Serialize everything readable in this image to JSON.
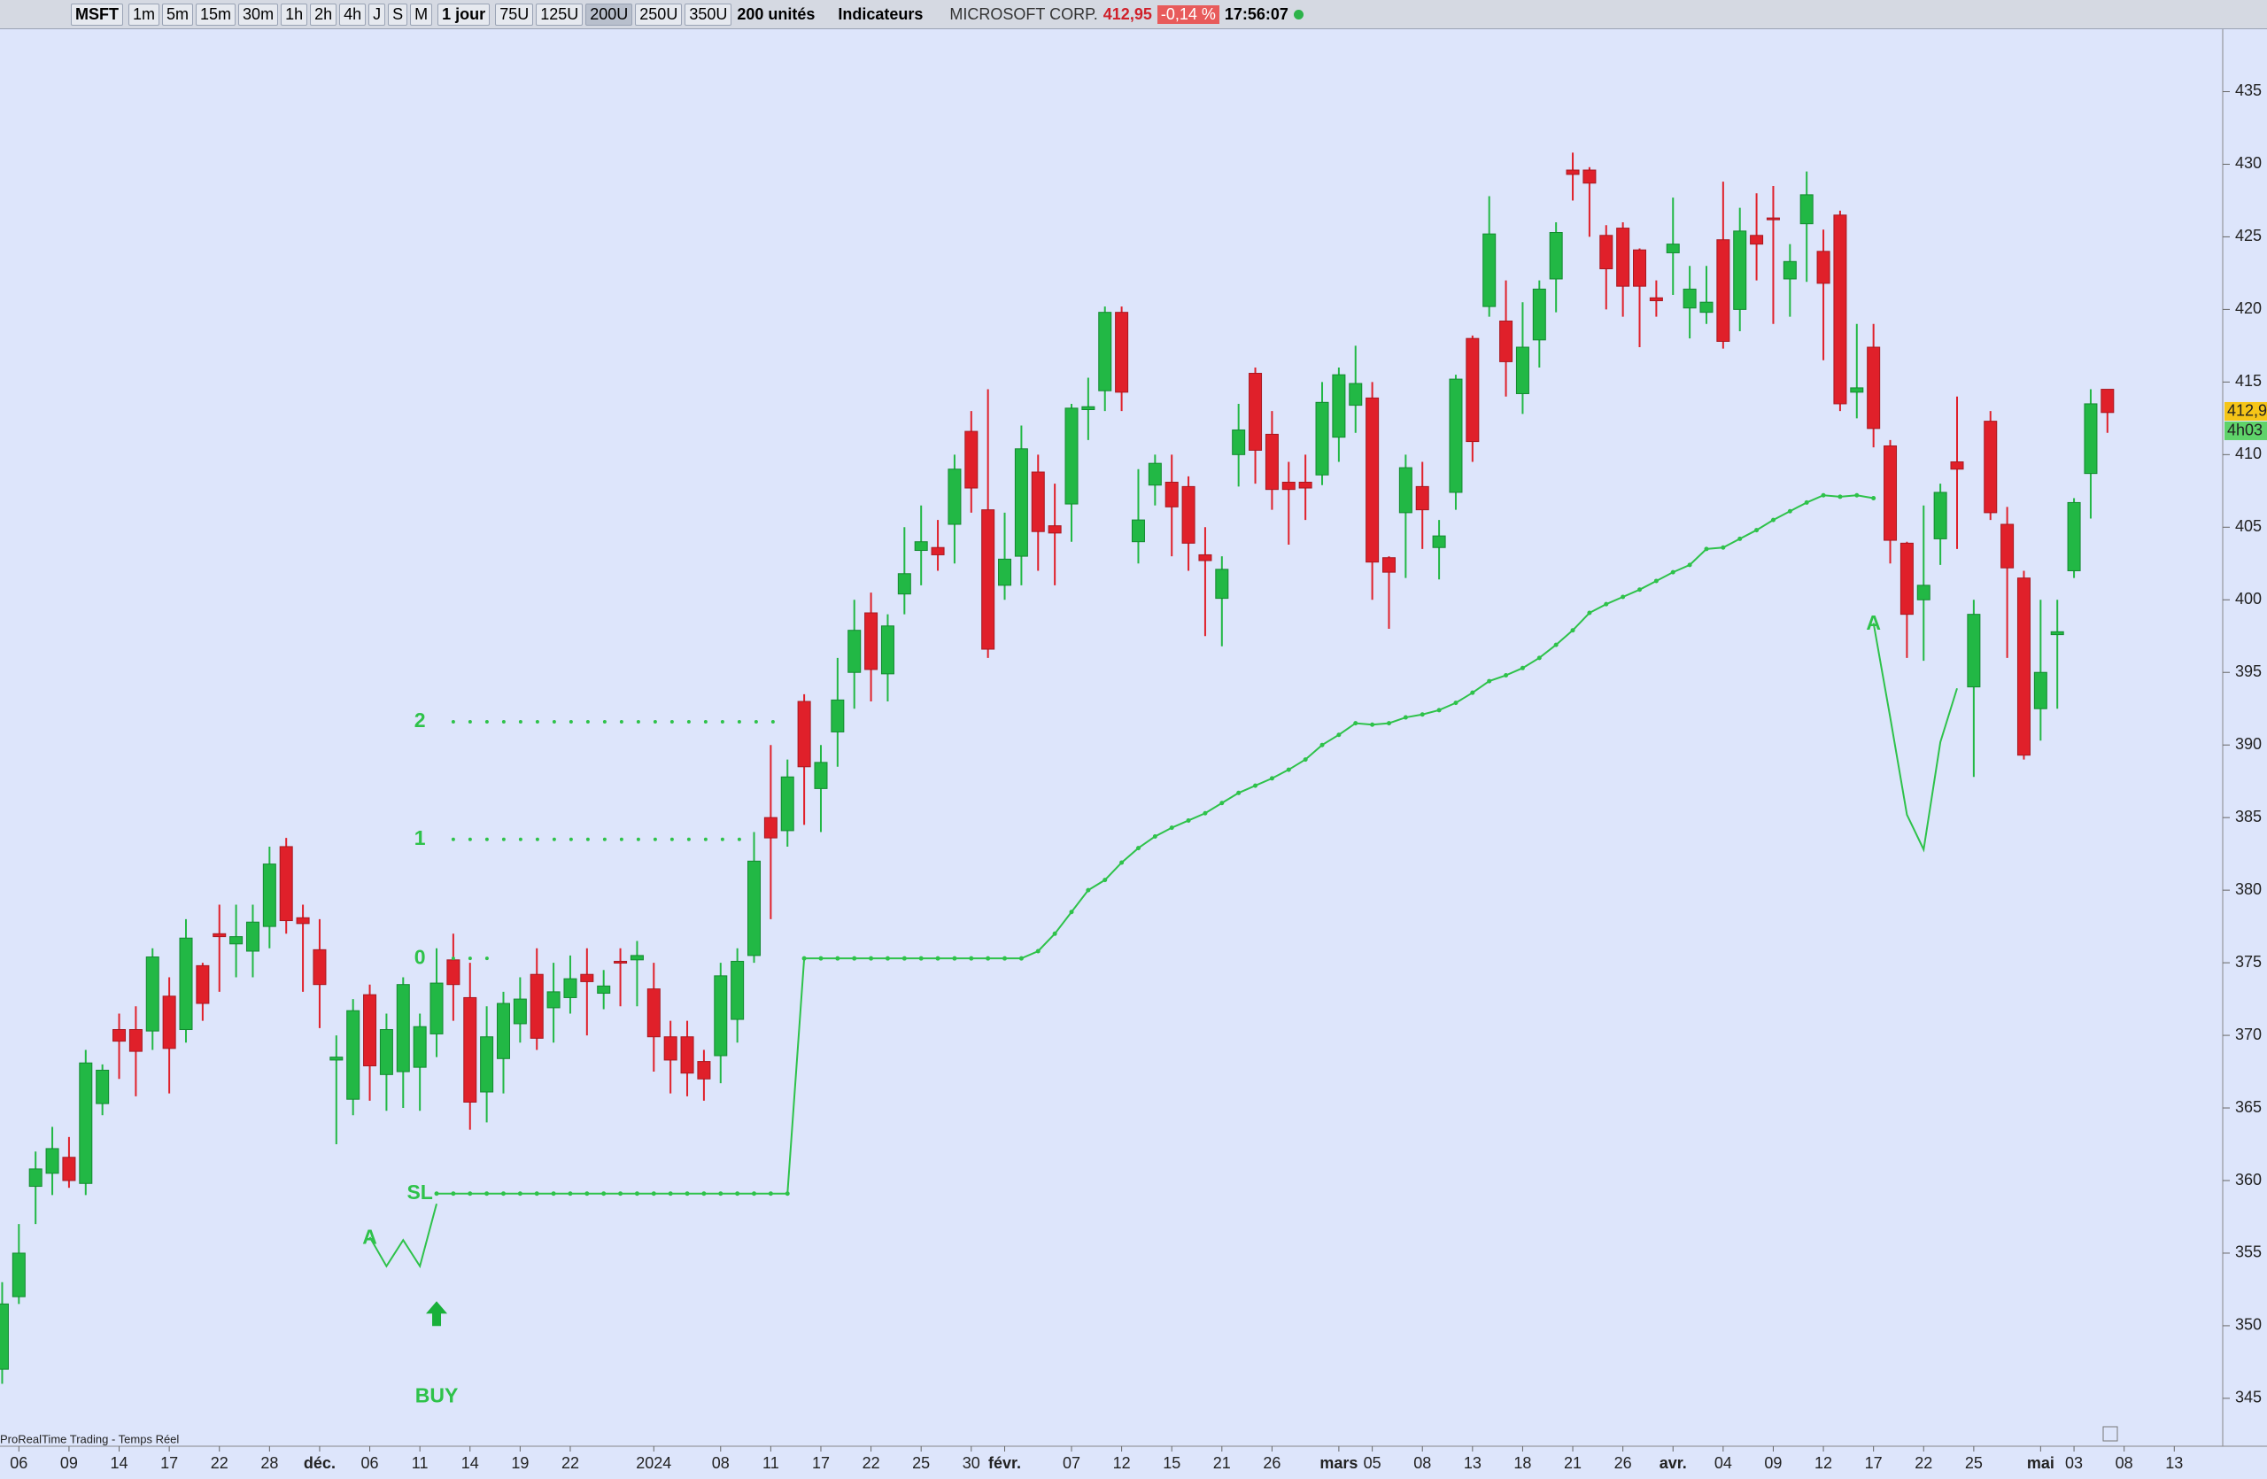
{
  "toolbar": {
    "symbol": "MSFT",
    "timeframes": [
      "1m",
      "5m",
      "15m",
      "30m",
      "1h",
      "2h",
      "4h",
      "J",
      "S",
      "M"
    ],
    "period": "1 jour",
    "units": [
      "75U",
      "125U",
      "200U",
      "250U",
      "350U"
    ],
    "selected_unit_index": 2,
    "unit_count": "200 unités",
    "indicators": "Indicateurs",
    "instrument": "MICROSOFT CORP.",
    "price": "412,95",
    "change": "-0,14 %",
    "time": "17:56:07"
  },
  "chart_data": {
    "type": "candlestick",
    "footer": "ProRealTime Trading - Temps Réel",
    "up_color": "#22b845",
    "down_color": "#e0202a",
    "line_color": "#2ec24a",
    "xlim": [
      -0.13,
      132.9
    ],
    "ylim": [
      341.7,
      439.3
    ],
    "yticks": [
      345,
      350,
      355,
      360,
      365,
      370,
      375,
      380,
      385,
      390,
      395,
      400,
      405,
      410,
      415,
      420,
      425,
      430,
      435
    ],
    "xticks": [
      {
        "value": 1,
        "label": "06"
      },
      {
        "value": 4,
        "label": "09"
      },
      {
        "value": 7,
        "label": "14"
      },
      {
        "value": 10,
        "label": "17"
      },
      {
        "value": 13,
        "label": "22"
      },
      {
        "value": 16,
        "label": "28"
      },
      {
        "value": 19,
        "label": "déc."
      },
      {
        "value": 22,
        "label": "06"
      },
      {
        "value": 25,
        "label": "11"
      },
      {
        "value": 28,
        "label": "14"
      },
      {
        "value": 31,
        "label": "19"
      },
      {
        "value": 34,
        "label": "22"
      },
      {
        "value": 39,
        "label": "2024"
      },
      {
        "value": 43,
        "label": "08"
      },
      {
        "value": 46,
        "label": "11"
      },
      {
        "value": 49,
        "label": "17"
      },
      {
        "value": 52,
        "label": "22"
      },
      {
        "value": 55,
        "label": "25"
      },
      {
        "value": 58,
        "label": "30"
      },
      {
        "value": 60,
        "label": "févr."
      },
      {
        "value": 64,
        "label": "07"
      },
      {
        "value": 67,
        "label": "12"
      },
      {
        "value": 70,
        "label": "15"
      },
      {
        "value": 73,
        "label": "21"
      },
      {
        "value": 76,
        "label": "26"
      },
      {
        "value": 80,
        "label": "mars"
      },
      {
        "value": 82,
        "label": "05"
      },
      {
        "value": 85,
        "label": "08"
      },
      {
        "value": 88,
        "label": "13"
      },
      {
        "value": 91,
        "label": "18"
      },
      {
        "value": 94,
        "label": "21"
      },
      {
        "value": 97,
        "label": "26"
      },
      {
        "value": 100,
        "label": "avr."
      },
      {
        "value": 103,
        "label": "04"
      },
      {
        "value": 106,
        "label": "09"
      },
      {
        "value": 109,
        "label": "12"
      },
      {
        "value": 112,
        "label": "17"
      },
      {
        "value": 115,
        "label": "22"
      },
      {
        "value": 118,
        "label": "25"
      },
      {
        "value": 122,
        "label": "mai"
      },
      {
        "value": 124,
        "label": "03"
      },
      {
        "value": 127,
        "label": "08"
      },
      {
        "value": 130,
        "label": "13"
      }
    ],
    "open": [
      347,
      352,
      359.6,
      360.5,
      361.6,
      359.8,
      365.3,
      370.4,
      370.4,
      370.3,
      372.7,
      370.4,
      374.8,
      377,
      376.3,
      375.8,
      377.5,
      383,
      378.1,
      375.9,
      368.3,
      365.6,
      372.8,
      367.3,
      367.5,
      367.8,
      370.1,
      375.2,
      372.6,
      366.1,
      368.4,
      370.8,
      374.2,
      371.9,
      372.6,
      374.2,
      372.9,
      375.1,
      375.2,
      373.2,
      369.9,
      369.9,
      368.2,
      368.6,
      371.1,
      375.5,
      385,
      384.1,
      393,
      387,
      390.9,
      395,
      399.1,
      394.9,
      400.4,
      403.4,
      403.6,
      405.2,
      411.6,
      406.2,
      401,
      403,
      408.8,
      405.1,
      406.6,
      413.1,
      414.4,
      419.8,
      404,
      407.9,
      408.1,
      407.8,
      403.1,
      400.1,
      410,
      415.6,
      411.4,
      408.1,
      408.1,
      408.6,
      411.2,
      413.4,
      413.9,
      402.9,
      406,
      407.8,
      403.6,
      407.4,
      418,
      420.2,
      419.2,
      414.2,
      417.9,
      422.1,
      429.6,
      429.6,
      425.1,
      425.6,
      424.1,
      420.8,
      423.9,
      420.1,
      419.8,
      424.8,
      420,
      425.1,
      426.3,
      422.1,
      425.9,
      424,
      426.5,
      414.3,
      417.4,
      410.6,
      403.9,
      400,
      404.2,
      409.5,
      394,
      412.3,
      405.2,
      401.5,
      392.5,
      397.6,
      402,
      408.7,
      414.5
    ],
    "close": [
      351.5,
      355,
      360.8,
      362.2,
      360,
      368.1,
      367.6,
      369.6,
      368.9,
      375.4,
      369.1,
      376.7,
      372.2,
      376.8,
      376.8,
      377.8,
      381.8,
      377.9,
      377.7,
      373.5,
      368.5,
      371.7,
      367.9,
      370.4,
      373.5,
      370.6,
      373.6,
      373.5,
      365.4,
      369.9,
      372.2,
      372.5,
      369.8,
      373,
      373.9,
      373.7,
      373.4,
      375,
      375.5,
      369.9,
      368.3,
      367.4,
      367,
      374.1,
      375.1,
      382,
      383.6,
      387.8,
      388.5,
      388.8,
      393.1,
      397.9,
      395.2,
      398.2,
      401.8,
      404,
      403.1,
      409,
      407.7,
      396.6,
      402.8,
      410.4,
      404.7,
      404.6,
      413.2,
      413.3,
      419.8,
      414.3,
      405.5,
      409.4,
      406.4,
      403.9,
      402.7,
      402.1,
      411.7,
      410.3,
      407.6,
      407.6,
      407.7,
      413.6,
      415.5,
      414.9,
      402.6,
      401.9,
      409.1,
      406.2,
      404.4,
      415.2,
      410.9,
      425.2,
      416.4,
      417.4,
      421.4,
      425.3,
      429.3,
      428.7,
      422.8,
      421.6,
      421.6,
      420.6,
      424.5,
      421.4,
      420.5,
      417.8,
      425.4,
      424.5,
      426.2,
      423.3,
      427.9,
      421.8,
      413.5,
      414.6,
      411.8,
      404.1,
      399,
      401,
      407.4,
      409,
      399,
      406,
      402.2,
      389.3,
      395,
      397.8,
      406.7,
      413.5,
      412.9
    ],
    "high": [
      353,
      357,
      362,
      363.7,
      363,
      369,
      368,
      371.5,
      372,
      376,
      374,
      378,
      375,
      379,
      379,
      379,
      383,
      383.6,
      379,
      378,
      370,
      372.5,
      373.5,
      371.5,
      374,
      371.5,
      376,
      377,
      375,
      372,
      373,
      374,
      376,
      375,
      375.5,
      376,
      374.5,
      376,
      376.5,
      375,
      371,
      371,
      369,
      375,
      376,
      384,
      390,
      389,
      393.5,
      390,
      396,
      400,
      400.5,
      399,
      405,
      406.5,
      405.5,
      410,
      413,
      414.5,
      406,
      412,
      410,
      408,
      413.5,
      415.3,
      420.2,
      420.2,
      409,
      410,
      410,
      408.5,
      405,
      403,
      413.5,
      416,
      413,
      409.5,
      410,
      415,
      416,
      417.5,
      415,
      403,
      410,
      409.5,
      405.5,
      415.5,
      418.2,
      427.8,
      422,
      420.5,
      422,
      426,
      430.8,
      429.8,
      425.8,
      426,
      424.2,
      422,
      427.7,
      423,
      423,
      428.8,
      427,
      428,
      428.5,
      424.5,
      429.5,
      425.5,
      426.8,
      419,
      419,
      411,
      404,
      406.5,
      408,
      414,
      400,
      413,
      406.4,
      402,
      400,
      400,
      407,
      414.5,
      414.5
    ],
    "low": [
      346,
      351.5,
      357,
      359,
      359.5,
      359,
      364.5,
      367,
      365.8,
      369,
      366,
      369.5,
      371,
      373,
      374,
      374,
      376,
      377,
      373,
      370.5,
      362.5,
      364.5,
      365.5,
      364.8,
      365,
      364.8,
      368.5,
      371,
      363.5,
      364,
      366,
      369.5,
      369,
      369.5,
      371.5,
      370,
      371.8,
      372,
      372,
      367.5,
      366,
      365.8,
      365.5,
      366.7,
      369.5,
      375,
      378,
      383,
      384.5,
      384,
      388.5,
      392.5,
      393,
      393,
      399,
      401,
      402,
      402.5,
      406,
      396,
      400,
      401,
      402,
      401,
      404,
      411,
      413,
      413,
      402.5,
      406.5,
      403,
      402,
      397.5,
      396.8,
      407.8,
      408,
      406.2,
      403.8,
      405.5,
      407.9,
      409.5,
      411.5,
      400,
      398,
      401.5,
      403.5,
      401.4,
      406.2,
      409.5,
      419.5,
      414,
      412.8,
      416,
      419.8,
      427.5,
      425,
      420,
      419.5,
      417.4,
      419.5,
      421,
      418,
      419,
      417.3,
      418.5,
      422,
      419,
      419.5,
      421.9,
      416.5,
      413,
      412.5,
      410.5,
      402.5,
      396,
      395.8,
      402.4,
      403.5,
      387.8,
      405.5,
      396,
      389,
      390.3,
      392.5,
      401.5,
      405.6,
      411.5
    ],
    "lines": [
      {
        "x": [
          26,
          27,
          28,
          29,
          30,
          31,
          32,
          33,
          34,
          35,
          36,
          37,
          38,
          39,
          40,
          41,
          42,
          43,
          44,
          45,
          46,
          47,
          48,
          49,
          50,
          51,
          52,
          53,
          54,
          55,
          56,
          57,
          58,
          59,
          60,
          61,
          62,
          63,
          64,
          65,
          66,
          67,
          68,
          69,
          70,
          71,
          72,
          73,
          74,
          75,
          76,
          77,
          78,
          79,
          80,
          81,
          82,
          83,
          84,
          85,
          86,
          87,
          88,
          89,
          90,
          91,
          92,
          93,
          94,
          95,
          96,
          97,
          98,
          99,
          100,
          101,
          102,
          103,
          104,
          105,
          106,
          107,
          108,
          109,
          110,
          111,
          112
        ],
        "values": [
          359.1,
          359.1,
          359.1,
          359.1,
          359.1,
          359.1,
          359.1,
          359.1,
          359.1,
          359.1,
          359.1,
          359.1,
          359.1,
          359.1,
          359.1,
          359.1,
          359.1,
          359.1,
          359.1,
          359.1,
          359.1,
          359.1,
          375.3,
          375.3,
          375.3,
          375.3,
          375.3,
          375.3,
          375.3,
          375.3,
          375.3,
          375.3,
          375.3,
          375.3,
          375.3,
          375.3,
          375.8,
          377,
          378.5,
          380,
          380.7,
          381.9,
          382.9,
          383.7,
          384.3,
          384.8,
          385.3,
          386,
          386.7,
          387.2,
          387.7,
          388.3,
          389,
          390,
          390.7,
          391.5,
          391.4,
          391.5,
          391.9,
          392.1,
          392.4,
          392.9,
          393.6,
          394.4,
          394.8,
          395.3,
          396,
          396.9,
          397.9,
          399.1,
          399.7,
          400.2,
          400.7,
          401.3,
          401.9,
          402.4,
          403.5,
          403.6,
          404.2,
          404.8,
          405.5,
          406.1,
          406.7,
          407.2,
          407.1,
          407.2,
          407
        ],
        "dots": true
      },
      {
        "x": [
          22,
          23,
          24,
          25,
          26
        ],
        "values": [
          356.1,
          354.1,
          355.9,
          354.1,
          358.4
        ]
      },
      {
        "x": [
          112,
          113,
          114,
          115,
          116,
          117
        ],
        "values": [
          398.4,
          391.9,
          385.2,
          382.8,
          390.2,
          393.9
        ]
      }
    ],
    "levels": [
      {
        "x": [
          27,
          47
        ],
        "value": 391.6
      },
      {
        "x": [
          27,
          45
        ],
        "value": 383.5
      },
      {
        "x": [
          27,
          30
        ],
        "value": 375.3
      }
    ],
    "annotations": [
      {
        "text": "2",
        "x": 25,
        "y": 391.6
      },
      {
        "text": "1",
        "x": 25,
        "y": 383.5
      },
      {
        "text": "0",
        "x": 25,
        "y": 375.3
      },
      {
        "text": "SL",
        "x": 25,
        "y": 359.1
      },
      {
        "text": "A",
        "x": 22,
        "y": 356
      },
      {
        "text": "A",
        "x": 112,
        "y": 398.3
      },
      {
        "text": "BUY",
        "x": 26,
        "y": 345.1,
        "arrow": true
      }
    ],
    "last_price": {
      "value": 412.95,
      "label": "412,9"
    },
    "timer": "4h03"
  }
}
